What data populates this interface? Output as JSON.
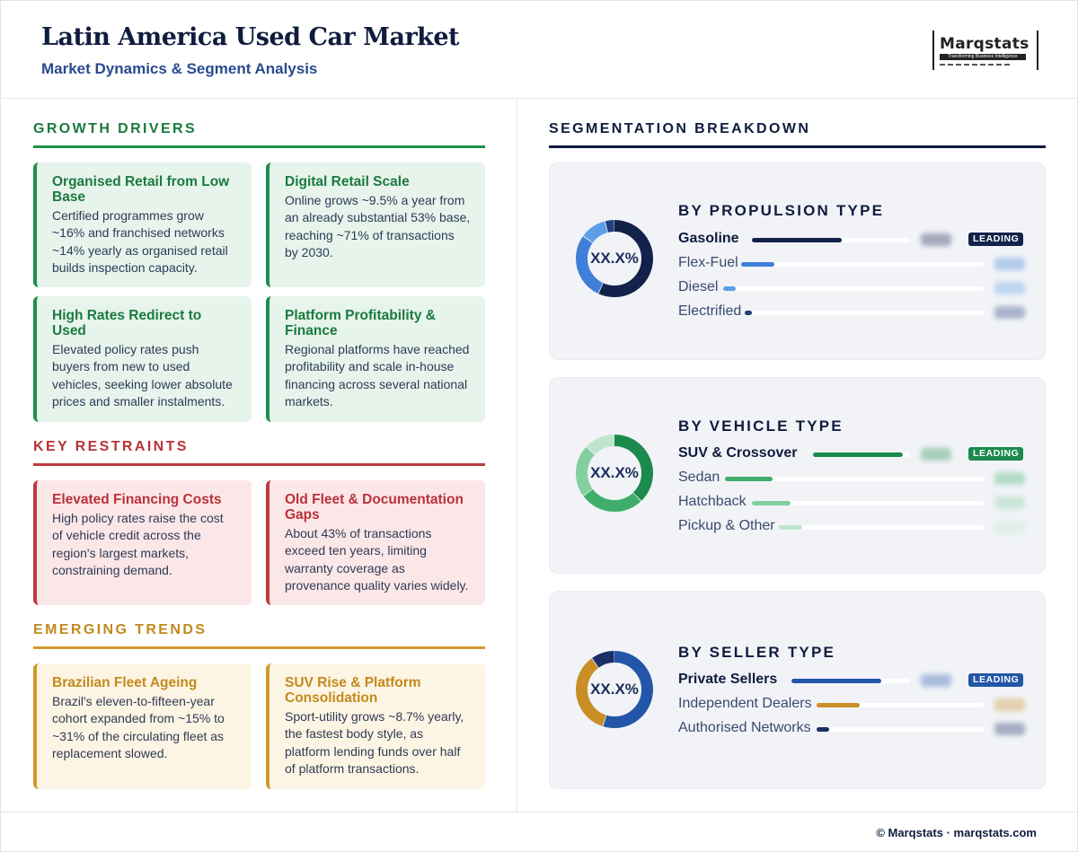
{
  "header": {
    "title": "Latin America Used Car Market",
    "subtitle": "Market Dynamics & Segment Analysis",
    "logo_name": "Marqstats",
    "logo_tagline": "Transforming Business Intelligence"
  },
  "growth_drivers": {
    "heading": "GROWTH DRIVERS",
    "cards": [
      {
        "title": "Organised Retail from Low Base",
        "body": "Certified programmes grow ~16% and franchised networks ~14% yearly as organised retail builds inspection capacity."
      },
      {
        "title": "Digital Retail Scale",
        "body": "Online grows ~9.5% a year from an already substantial 53% base, reaching ~71% of transactions by 2030."
      },
      {
        "title": "High Rates Redirect to Used",
        "body": "Elevated policy rates push buyers from new to used vehicles, seeking lower absolute prices and smaller instalments."
      },
      {
        "title": "Platform Profitability & Finance",
        "body": "Regional platforms have reached profitability and scale in-house financing across several national markets."
      }
    ]
  },
  "key_restraints": {
    "heading": "KEY RESTRAINTS",
    "cards": [
      {
        "title": "Elevated Financing Costs",
        "body": "High policy rates raise the cost of vehicle credit across the region's largest markets, constraining demand."
      },
      {
        "title": "Old Fleet & Documentation Gaps",
        "body": "About 43% of transactions exceed ten years, limiting warranty coverage as provenance quality varies widely."
      }
    ]
  },
  "emerging_trends": {
    "heading": "EMERGING TRENDS",
    "cards": [
      {
        "title": "Brazilian Fleet Ageing",
        "body": "Brazil's eleven-to-fifteen-year cohort expanded from ~15% to ~31% of the circulating fleet as replacement slowed."
      },
      {
        "title": "SUV Rise & Platform Consolidation",
        "body": "Sport-utility grows ~8.7% yearly, the fastest body style, as platform lending funds over half of platform transactions."
      }
    ]
  },
  "segmentation": {
    "heading": "SEGMENTATION BREAKDOWN",
    "leading_label": "LEADING",
    "panels": [
      {
        "heading": "BY PROPULSION TYPE",
        "donut_label": "XX.X%",
        "rows": [
          {
            "label": "Gasoline",
            "share": 0.57,
            "color": "#13224a"
          },
          {
            "label": "Flex-Fuel",
            "share": 0.28,
            "color": "#3f7fd9"
          },
          {
            "label": "Diesel",
            "share": 0.11,
            "color": "#5d9fe6"
          },
          {
            "label": "Electrified",
            "share": 0.04,
            "color": "#1f3f7a"
          }
        ]
      },
      {
        "heading": "BY VEHICLE TYPE",
        "donut_label": "XX.X%",
        "rows": [
          {
            "label": "SUV & Crossover",
            "share": 0.38,
            "color": "#1b8a4c"
          },
          {
            "label": "Sedan",
            "share": 0.27,
            "color": "#3fae6c"
          },
          {
            "label": "Hatchback",
            "share": 0.22,
            "color": "#84cfa0"
          },
          {
            "label": "Pickup & Other",
            "share": 0.13,
            "color": "#bfe5cc"
          }
        ]
      },
      {
        "heading": "BY SELLER TYPE",
        "donut_label": "XX.X%",
        "rows": [
          {
            "label": "Private Sellers",
            "share": 0.55,
            "color": "#2356a8"
          },
          {
            "label": "Independent Dealers",
            "share": 0.35,
            "color": "#c98f25"
          },
          {
            "label": "Authorised Networks",
            "share": 0.1,
            "color": "#1a2f66"
          }
        ]
      }
    ]
  },
  "footer": {
    "text": "© Marqstats · marqstats.com"
  }
}
